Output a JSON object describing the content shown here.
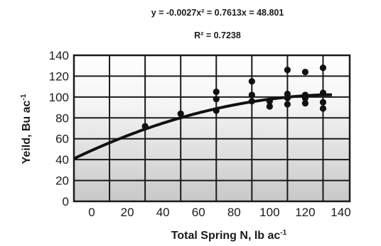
{
  "chart_data": {
    "type": "scatter",
    "annotations": {
      "equation": "y = -0.0027x² = 0.7613x = 48.801",
      "r_squared": "R² = 0.7238"
    },
    "xlabel": "Total Spring N, lb ac",
    "xlabel_sup": "-1",
    "ylabel": "Yeild, Bu ac",
    "ylabel_sup": "-1",
    "xlim": [
      -10,
      145
    ],
    "ylim": [
      0,
      140
    ],
    "x_ticks": [
      0,
      20,
      40,
      60,
      80,
      100,
      120,
      140
    ],
    "y_ticks": [
      0,
      20,
      40,
      60,
      80,
      100,
      120,
      140
    ],
    "grid": true,
    "points": [
      {
        "x": 30,
        "y": 72
      },
      {
        "x": 50,
        "y": 84
      },
      {
        "x": 70,
        "y": 105
      },
      {
        "x": 70,
        "y": 98
      },
      {
        "x": 70,
        "y": 87
      },
      {
        "x": 90,
        "y": 115
      },
      {
        "x": 90,
        "y": 102
      },
      {
        "x": 90,
        "y": 96
      },
      {
        "x": 100,
        "y": 96
      },
      {
        "x": 100,
        "y": 91
      },
      {
        "x": 110,
        "y": 126
      },
      {
        "x": 110,
        "y": 103
      },
      {
        "x": 110,
        "y": 99
      },
      {
        "x": 110,
        "y": 93
      },
      {
        "x": 120,
        "y": 124
      },
      {
        "x": 120,
        "y": 102
      },
      {
        "x": 120,
        "y": 99
      },
      {
        "x": 120,
        "y": 94
      },
      {
        "x": 130,
        "y": 128
      },
      {
        "x": 130,
        "y": 104
      },
      {
        "x": 130,
        "y": 95
      },
      {
        "x": 130,
        "y": 89
      }
    ],
    "trendline": {
      "type": "quadratic",
      "a": -0.0027,
      "b": 0.7613,
      "c": 48.801,
      "x_range": [
        -10,
        130
      ],
      "extend_flat_to": 135
    }
  }
}
